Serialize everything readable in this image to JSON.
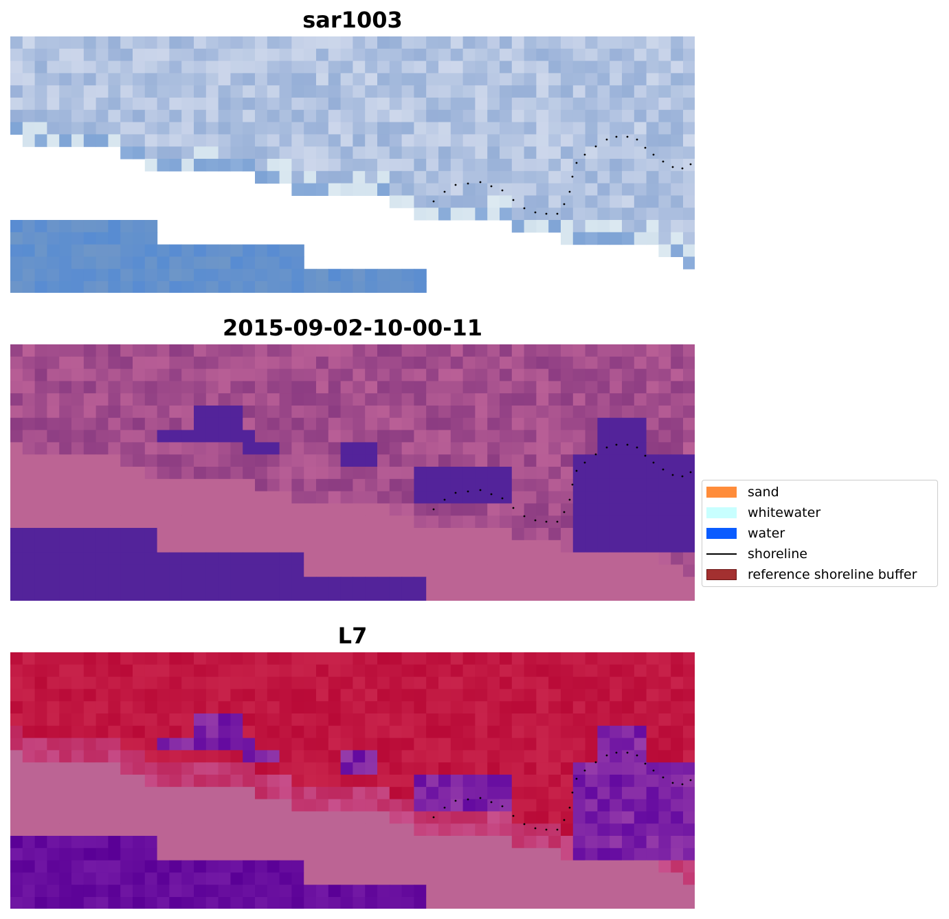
{
  "panels": [
    {
      "title": "sar1003",
      "style": "sar"
    },
    {
      "title": "2015-09-02-10-00-11",
      "style": "classified"
    },
    {
      "title": "L7",
      "style": "mndwi"
    }
  ],
  "legend": {
    "items": [
      {
        "label": "sand",
        "color": "#ff8c3a",
        "kind": "patch"
      },
      {
        "label": "whitewater",
        "color": "#c8ffff",
        "kind": "patch"
      },
      {
        "label": "water",
        "color": "#0a5cff",
        "kind": "patch"
      },
      {
        "label": "shoreline",
        "color": "#000000",
        "kind": "line"
      },
      {
        "label": "reference shoreline buffer",
        "color": "#a33030",
        "kind": "patch"
      }
    ]
  },
  "colors": {
    "land_pink": "#bc6494",
    "water_purple": "#53239a",
    "sar_blue": "#5a8ccc",
    "ndwi_red": "#c01844",
    "shoreline_dots": "#000000"
  }
}
